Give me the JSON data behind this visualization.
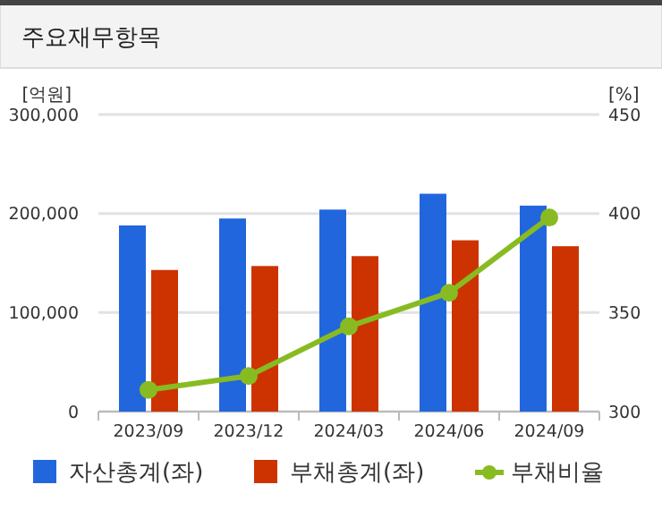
{
  "chart_data": {
    "type": "bar",
    "title": "주요재무항목",
    "ylabel": "[억원]",
    "y2label": "[%]",
    "categories": [
      "2023/09",
      "2023/12",
      "2024/03",
      "2024/06",
      "2024/09"
    ],
    "series": [
      {
        "name": "자산총계(좌)",
        "color": "#2266dd",
        "values": [
          188000,
          195000,
          204000,
          220000,
          208000
        ]
      },
      {
        "name": "부채총계(좌)",
        "color": "#cc3300",
        "values": [
          143000,
          147000,
          157000,
          173000,
          167000
        ]
      },
      {
        "name": "부채비율",
        "type": "line",
        "axis": "y2",
        "color": "#88bb22",
        "values": [
          311,
          318,
          343,
          360,
          398
        ]
      }
    ],
    "ylim": [
      0,
      300000
    ],
    "yticks": [
      0,
      {
        "value": 100000,
        "label": "100,000"
      },
      {
        "value": 200000,
        "label": "200,000"
      },
      {
        "value": 300000,
        "label": "300,000"
      }
    ],
    "y2lim": [
      300,
      450
    ],
    "y2ticks": [
      300,
      350,
      400,
      450
    ],
    "grid": "y",
    "legend": "bottom",
    "marker": "circle",
    "line_style": "solid"
  }
}
